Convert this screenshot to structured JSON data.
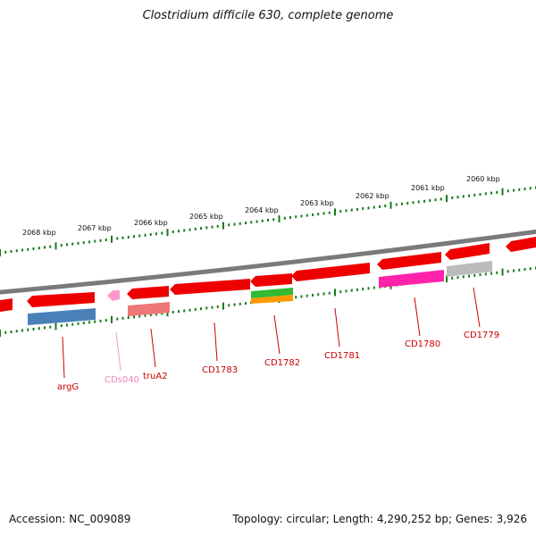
{
  "title": "Clostridium difficile 630, complete genome",
  "footer": {
    "accession": "Accession: NC_009089",
    "stats": "Topology: circular; Length: 4,290,252 bp; Genes: 3,926"
  },
  "colors": {
    "backbone": "#7a7a7a",
    "ticks": "#1a7a1a",
    "label_line": "#cc0000",
    "label_text": "#cc0000",
    "cds_red": "#ee0000",
    "cds_pink": "#ff99cc",
    "cds_salmon": "#ee7777",
    "cds_blue": "#4a80b8",
    "cds_green": "#33bb33",
    "cds_orange": "#ff9900",
    "cds_magenta": "#ff22aa",
    "cds_gray": "#bbbbbb"
  },
  "ticks": [
    {
      "label": "2060 kbp"
    },
    {
      "label": "2061 kbp"
    },
    {
      "label": "2062 kbp"
    },
    {
      "label": "2063 kbp"
    },
    {
      "label": "2064 kbp"
    },
    {
      "label": "2065 kbp"
    },
    {
      "label": "2066 kbp"
    },
    {
      "label": "2067 kbp"
    },
    {
      "label": "2068 kbp"
    }
  ],
  "gene_labels": [
    {
      "label": "argG",
      "color": "#cc0000"
    },
    {
      "label": "CDs040",
      "color": "#ee88bb"
    },
    {
      "label": "truA2",
      "color": "#cc0000"
    },
    {
      "label": "CD1783",
      "color": "#cc0000"
    },
    {
      "label": "CD1782",
      "color": "#cc0000"
    },
    {
      "label": "CD1781",
      "color": "#cc0000"
    },
    {
      "label": "CD1780",
      "color": "#cc0000"
    },
    {
      "label": "CD1779",
      "color": "#cc0000"
    }
  ]
}
